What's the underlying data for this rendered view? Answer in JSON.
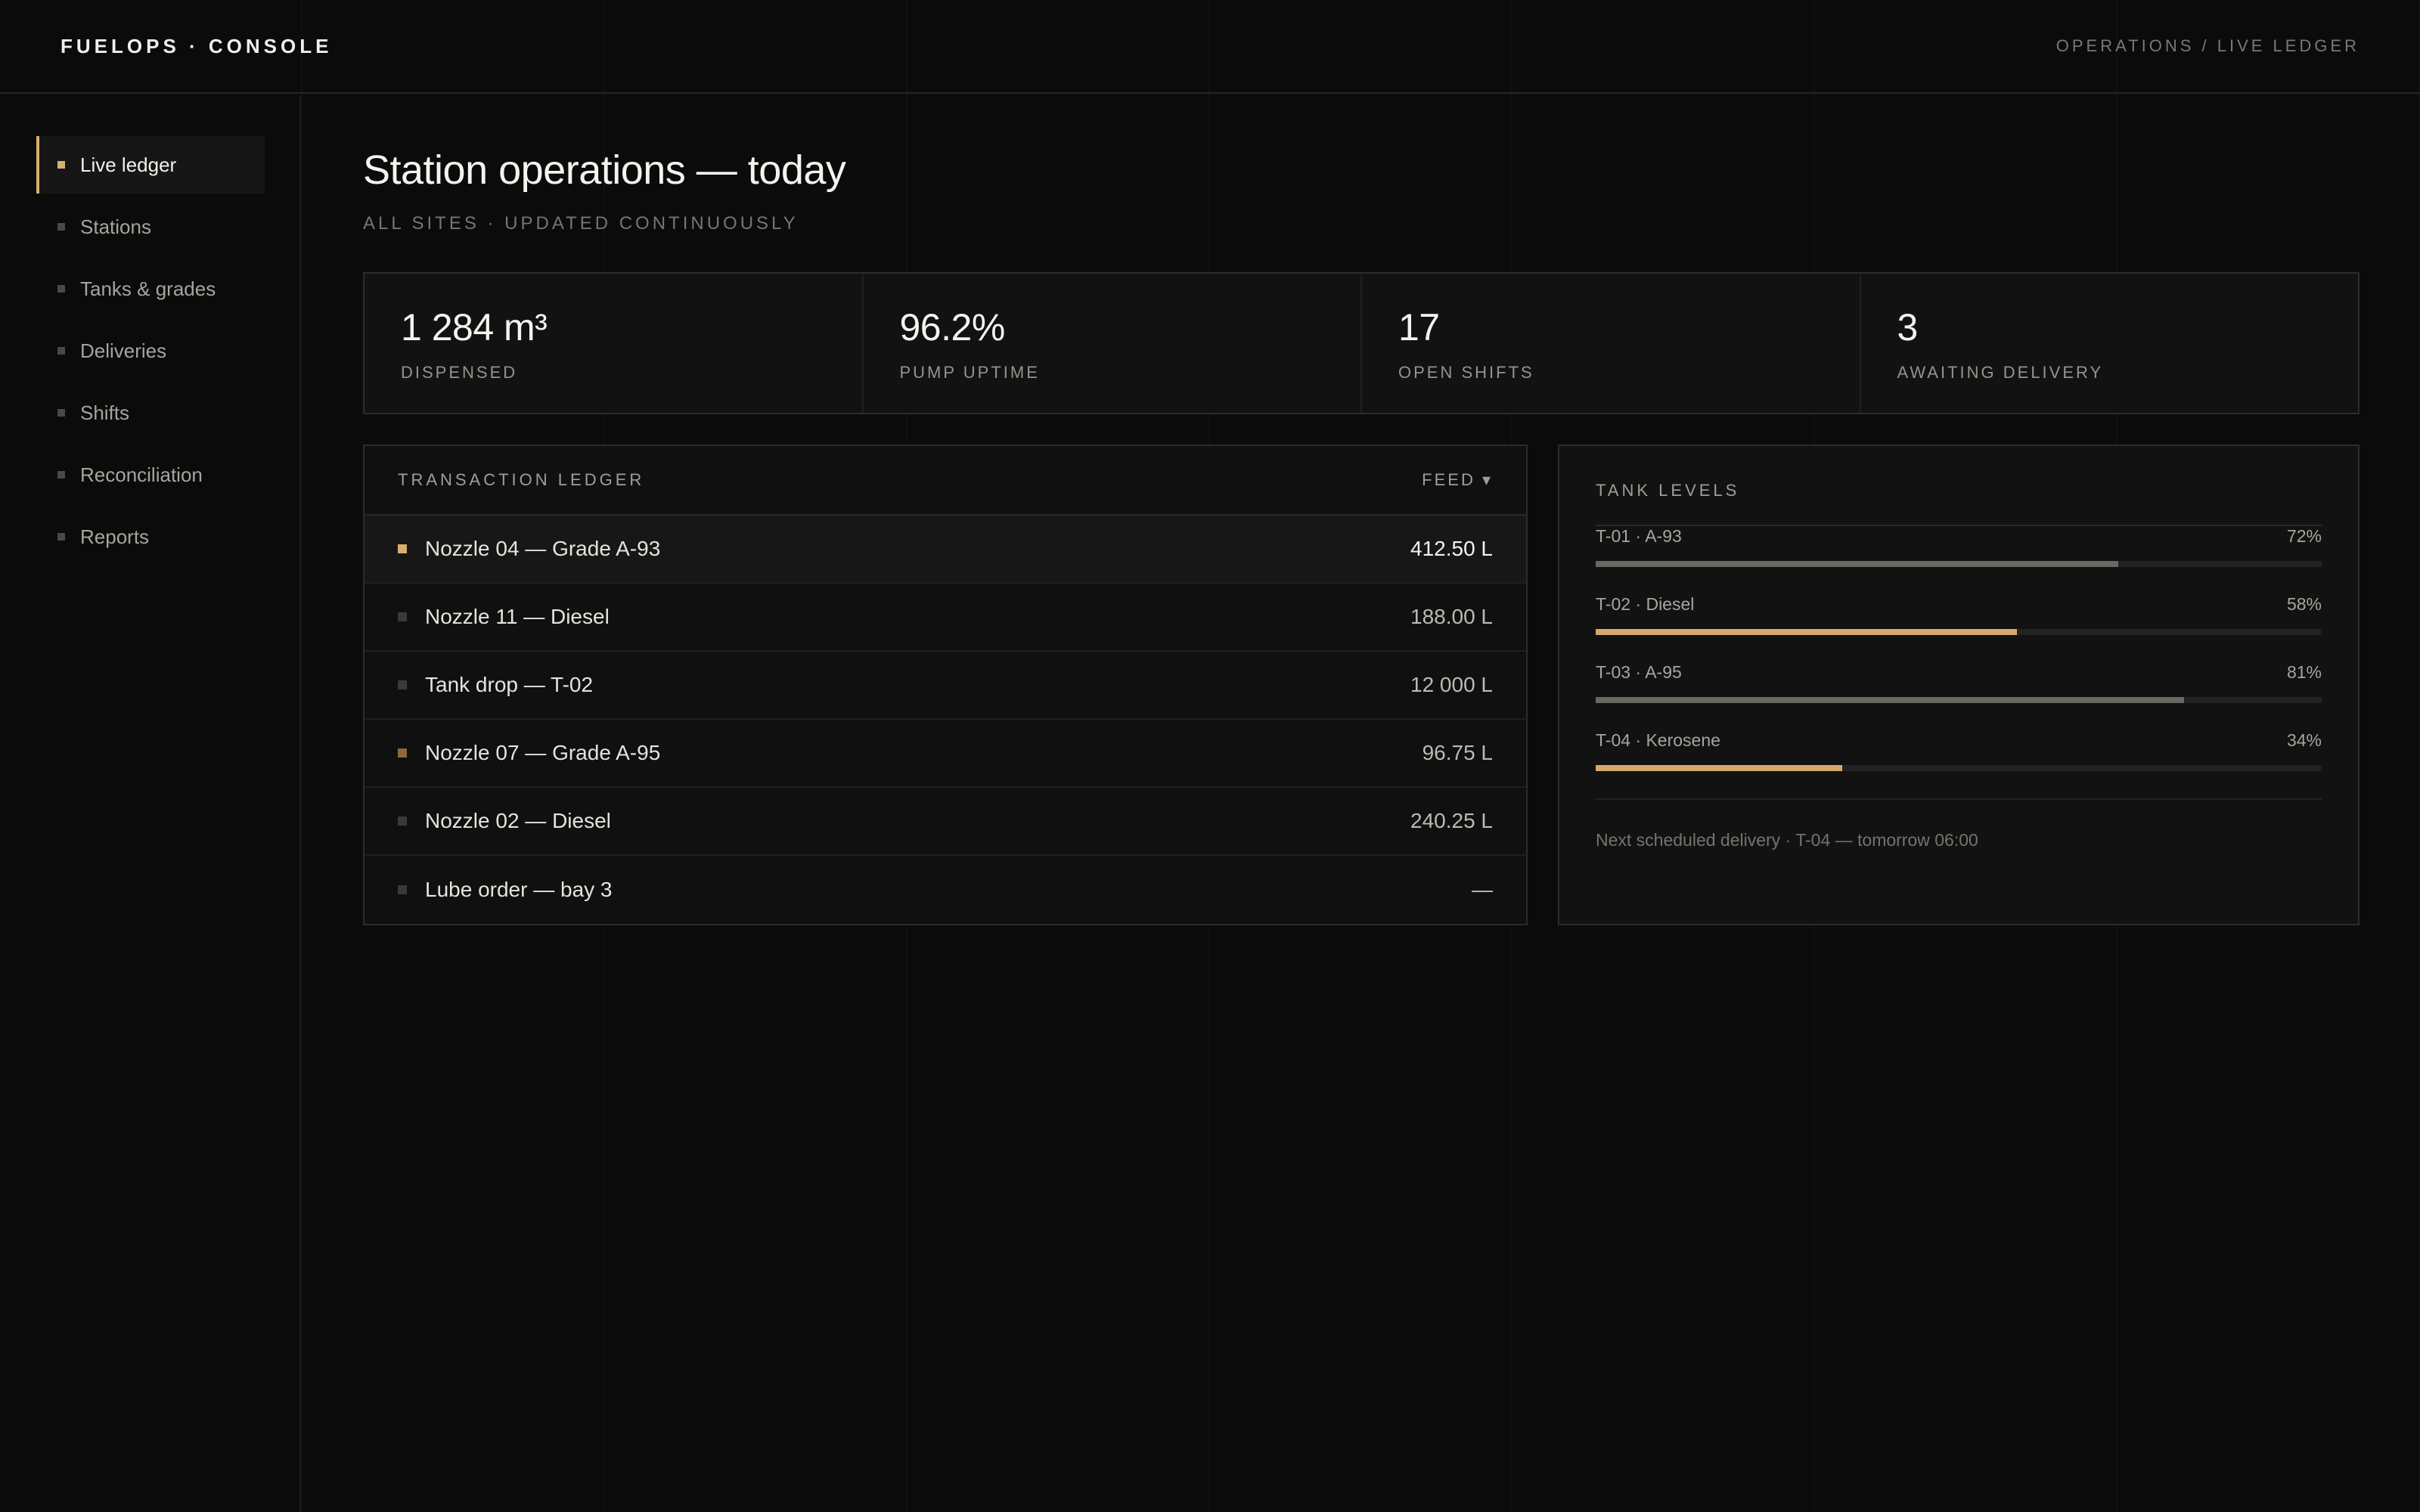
{
  "header": {
    "brand": "FUELOPS · CONSOLE",
    "breadcrumb": "OPERATIONS / LIVE LEDGER"
  },
  "sidebar": {
    "items": [
      {
        "label": "Live ledger",
        "active": true
      },
      {
        "label": "Stations"
      },
      {
        "label": "Tanks & grades"
      },
      {
        "label": "Deliveries"
      },
      {
        "label": "Shifts"
      },
      {
        "label": "Reconciliation"
      },
      {
        "label": "Reports"
      }
    ]
  },
  "main": {
    "title": "Station operations — today",
    "subtitle": "ALL SITES · UPDATED CONTINUOUSLY",
    "stats": [
      {
        "value": "1 284 m³",
        "label": "DISPENSED"
      },
      {
        "value": "96.2%",
        "label": "PUMP UPTIME"
      },
      {
        "value": "17",
        "label": "OPEN SHIFTS"
      },
      {
        "value": "3",
        "label": "AWAITING DELIVERY"
      }
    ]
  },
  "ledger": {
    "title": "TRANSACTION LEDGER",
    "feed_label": "FEED ▾",
    "rows": [
      {
        "label": "Nozzle 04 — Grade A-93",
        "value": "412.50 L",
        "dot_color": "#d9ae6f"
      },
      {
        "label": "Nozzle 11 — Diesel",
        "value": "188.00 L",
        "dot_color": "#3b3a37"
      },
      {
        "label": "Tank drop — T-02",
        "value": "12 000 L",
        "dot_color": "#3b3a37"
      },
      {
        "label": "Nozzle 07 — Grade A-95",
        "value": "96.75 L",
        "dot_color": "#8a6a3d"
      },
      {
        "label": "Nozzle 02 — Diesel",
        "value": "240.25 L",
        "dot_color": "#3b3a37"
      },
      {
        "label": "Lube order — bay 3",
        "value": "—",
        "dot_color": "#3b3a37"
      }
    ]
  },
  "tanks": {
    "title": "TANK LEVELS",
    "items": [
      {
        "name": "T-01 · A-93",
        "pct": "72%",
        "level": 0.72,
        "tone": "neutral"
      },
      {
        "name": "T-02 · Diesel",
        "pct": "58%",
        "level": 0.58,
        "tone": "gold"
      },
      {
        "name": "T-03 · A-95",
        "pct": "81%",
        "level": 0.81,
        "tone": "neutral"
      },
      {
        "name": "T-04 · Kerosene",
        "pct": "34%",
        "level": 0.34,
        "tone": "gold"
      }
    ],
    "note": "Next scheduled delivery · T-04 — tomorrow 06:00"
  },
  "colors": {
    "accent": "#d9ae6f",
    "background": "#0b0b0b",
    "panel": "#121212"
  }
}
